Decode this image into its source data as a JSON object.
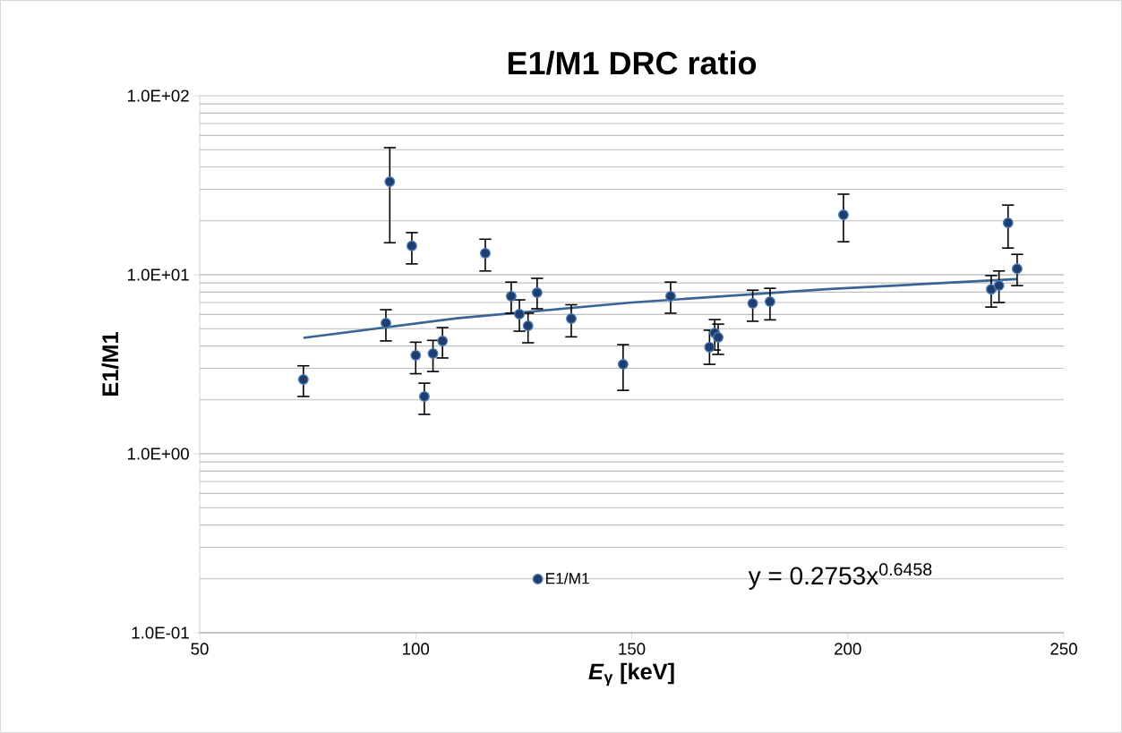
{
  "chart_data": {
    "type": "scatter",
    "title": "E1/M1 DRC ratio",
    "xlabel": "*E*$_{γ}$ [keV]",
    "ylabel": "E1/M1",
    "series": [
      {
        "name": "E1/M1",
        "type": "scatter",
        "color": "#1f3e6e",
        "marker": "circle",
        "x": [
          74,
          93.1,
          94,
          99.1,
          100,
          102,
          104,
          106.2,
          116.1,
          122.1,
          124,
          126,
          128.1,
          136,
          148,
          159,
          168,
          169.2,
          170,
          178,
          182,
          199,
          233.2,
          235,
          237.1,
          239.2
        ],
        "values": [
          2.6,
          5.37,
          33.1,
          14.5,
          3.55,
          2.09,
          3.63,
          4.27,
          13.2,
          7.59,
          6.03,
          5.19,
          7.94,
          5.69,
          3.16,
          7.59,
          3.94,
          4.73,
          4.47,
          6.92,
          7.08,
          21.6,
          8.3,
          8.7,
          19.5,
          10.8
        ],
        "errors": [
          [
            2.09,
            3.1
          ],
          [
            4.27,
            6.38
          ],
          [
            15.1,
            51.3
          ],
          [
            11.5,
            17.2
          ],
          [
            2.8,
            4.2
          ],
          [
            1.66,
            2.48
          ],
          [
            2.88,
            4.3
          ],
          [
            3.43,
            5.07
          ],
          [
            10.5,
            15.8
          ],
          [
            6.1,
            9.1
          ],
          [
            4.84,
            7.24
          ],
          [
            4.17,
            6.1
          ],
          [
            6.46,
            9.55
          ],
          [
            4.5,
            6.8
          ],
          [
            2.26,
            4.07
          ],
          [
            6.1,
            9.1
          ],
          [
            3.16,
            4.9
          ],
          [
            3.8,
            5.62
          ],
          [
            3.59,
            5.3
          ],
          [
            5.5,
            8.2
          ],
          [
            5.6,
            8.4
          ],
          [
            15.3,
            28.2
          ],
          [
            6.6,
            9.9
          ],
          [
            7.0,
            10.5
          ],
          [
            14.1,
            24.5
          ],
          [
            8.7,
            13.0
          ]
        ]
      },
      {
        "type": "line",
        "color": "#3a6494",
        "marker": "none",
        "line_style": "solid",
        "x": [
          74,
          110,
          150,
          195,
          239
        ],
        "values": [
          4.44,
          5.73,
          7.0,
          8.3,
          9.46
        ]
      }
    ],
    "annotations": [
      "y = 0.2753x$^{0.6458}$"
    ],
    "xlim": [
      50,
      250
    ],
    "xticks": [
      50,
      100,
      150,
      200,
      250
    ],
    "ylim": [
      0.1,
      100
    ],
    "yticks": [
      {
        "value": 0.1,
        "label": "1.0E-01"
      },
      {
        "value": 1,
        "label": "1.0E+00"
      },
      {
        "value": 10,
        "label": "1.0E+01"
      },
      {
        "value": 100,
        "label": "1.0E+02"
      }
    ],
    "log": "y",
    "grid": "y",
    "legend": "bottom"
  }
}
